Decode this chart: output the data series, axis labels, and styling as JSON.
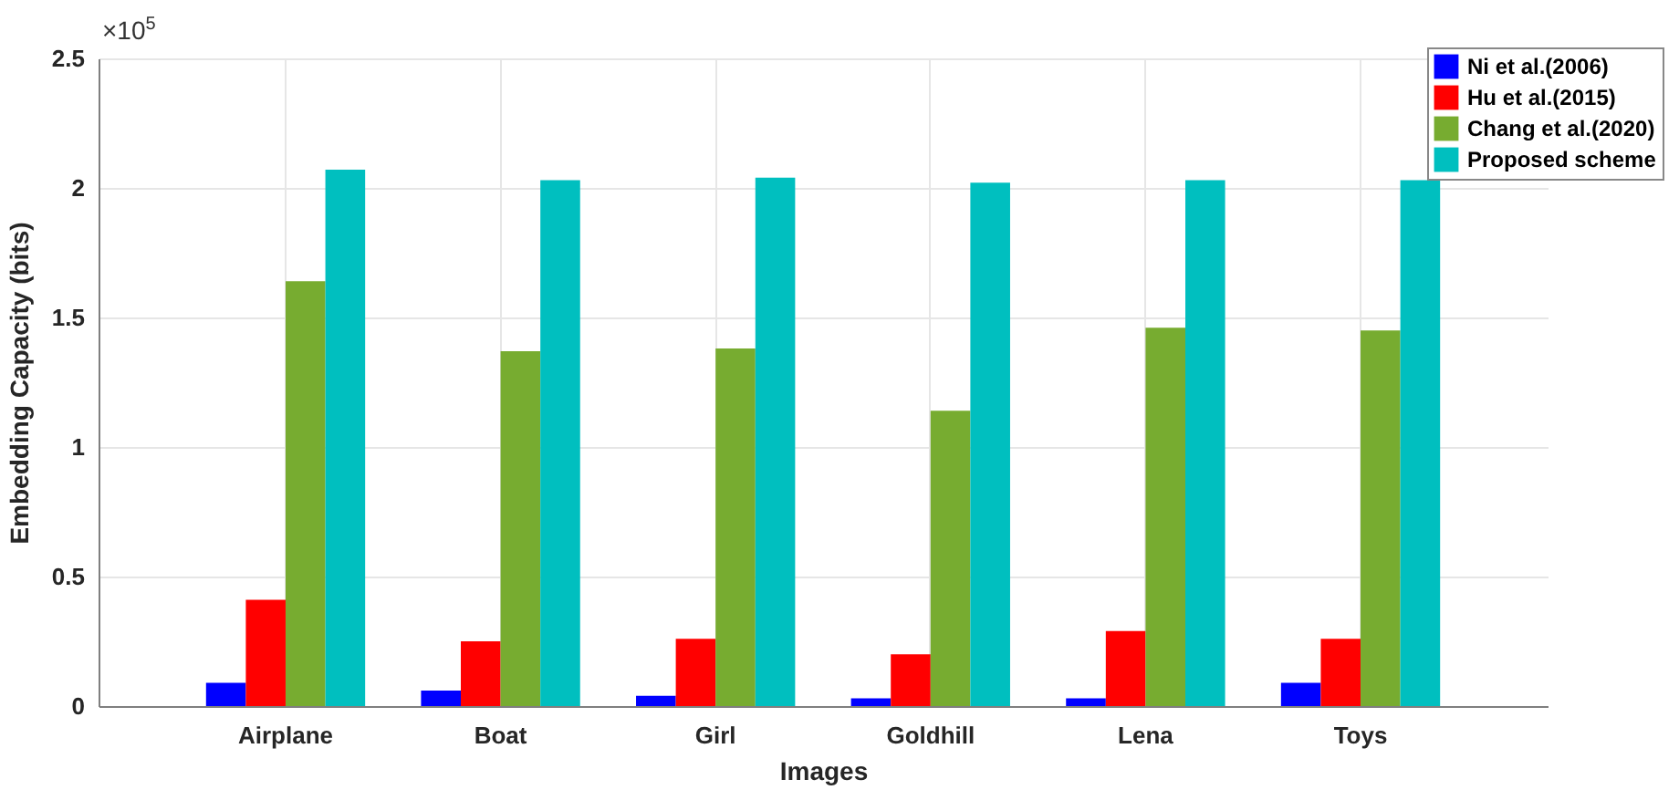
{
  "chart_data": {
    "type": "bar",
    "xlabel": "Images",
    "ylabel": "Embedding Capacity (bits)",
    "annotations": [
      "×10$^{5}$"
    ],
    "categories": [
      "Airplane",
      "Boat",
      "Girl",
      "Goldhill",
      "Lena",
      "Toys"
    ],
    "series": [
      {
        "name": "Ni et al.(2006)",
        "color": "#0000ff",
        "values": [
          0.09,
          0.06,
          0.04,
          0.03,
          0.03,
          0.09
        ]
      },
      {
        "name": "Hu et al.(2015)",
        "color": "#ff0000",
        "values": [
          0.41,
          0.25,
          0.26,
          0.2,
          0.29,
          0.26
        ]
      },
      {
        "name": "Chang et al.(2020)",
        "color": "#77ac30",
        "values": [
          1.64,
          1.37,
          1.38,
          1.14,
          1.46,
          1.45
        ]
      },
      {
        "name": "Proposed scheme",
        "color": "#00bfbf",
        "values": [
          2.07,
          2.03,
          2.04,
          2.02,
          2.03,
          2.03
        ]
      }
    ],
    "ylim": [
      0,
      2.5
    ],
    "yticks": [
      0,
      0.5,
      1,
      1.5,
      2,
      2.5
    ],
    "grid": true,
    "legend": "top right"
  }
}
